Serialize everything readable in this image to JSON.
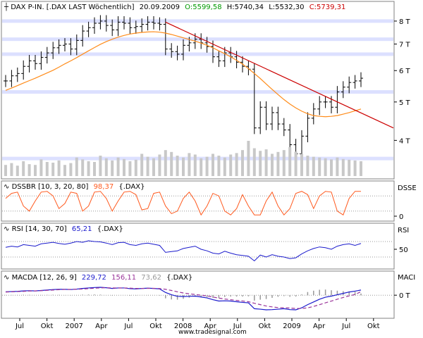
{
  "colors": {
    "background": "#ffffff",
    "price": "#000000",
    "moving_average": "#ff8c1a",
    "trendline": "#cc0000",
    "support_band": "#d6dbff",
    "volume": "#c8c8c8",
    "dssbr": "#ff5a1f",
    "rsi": "#1a1acc",
    "macd_line": "#1a1acc",
    "macd_signal": "#993399",
    "macd_hist": "#999999",
    "reference_line": "#000000",
    "gridline": "#dddddd",
    "green": "#009900",
    "red": "#cc0000"
  },
  "header": {
    "instrument": "DAX P-IN. [.DAX LAST Wöchentlich]",
    "date": "20.09.2009",
    "open": "O:5599,58",
    "high": "H:5740,34",
    "low": "L:5532,30",
    "close": "C:5739,31"
  },
  "footer": {
    "source": "www.tradesignal.com"
  },
  "chart_data": [
    {
      "type": "line",
      "panel": "price",
      "title": "DAX P-IN. [.DAX LAST Wöchentlich]",
      "y_scale": "log",
      "ylim": [
        3500,
        8400
      ],
      "y_ticks": [
        {
          "value": 8000,
          "label": "8 T"
        },
        {
          "value": 7000,
          "label": "7 T"
        },
        {
          "value": 6000,
          "label": "6 T"
        },
        {
          "value": 5000,
          "label": "5 T"
        },
        {
          "value": 4000,
          "label": "4 T"
        }
      ],
      "support_levels": [
        8000,
        7200,
        6600,
        5300,
        3600
      ],
      "x_ticks": [
        "Jul",
        "Okt",
        "2007",
        "Apr",
        "Jul",
        "Okt",
        "2008",
        "Apr",
        "Jul",
        "Okt",
        "2009",
        "Apr",
        "Jul",
        "Okt"
      ],
      "series": [
        {
          "name": "Close",
          "kind": "ohlc",
          "values": [
            5650,
            5820,
            5900,
            6150,
            6350,
            6250,
            6480,
            6650,
            6850,
            6950,
            7000,
            6800,
            7150,
            7550,
            7700,
            7900,
            8000,
            7800,
            7600,
            7950,
            7900,
            7700,
            7750,
            7850,
            7950,
            7900,
            7850,
            6800,
            6700,
            6600,
            6950,
            7050,
            7200,
            7050,
            6900,
            6500,
            6350,
            6650,
            6500,
            6300,
            6150,
            6050,
            4300,
            4850,
            4400,
            4700,
            4400,
            4250,
            3900,
            3700,
            4100,
            4550,
            4800,
            5000,
            5000,
            4850,
            5300,
            5450,
            5600,
            5650,
            5740
          ]
        },
        {
          "name": "MA",
          "kind": "line",
          "values": [
            5350,
            5420,
            5500,
            5580,
            5660,
            5740,
            5830,
            5920,
            6010,
            6120,
            6240,
            6350,
            6470,
            6600,
            6730,
            6860,
            6990,
            7100,
            7200,
            7290,
            7360,
            7420,
            7460,
            7490,
            7510,
            7520,
            7500,
            7460,
            7400,
            7330,
            7260,
            7190,
            7120,
            7040,
            6950,
            6850,
            6730,
            6620,
            6500,
            6370,
            6230,
            6070,
            5900,
            5730,
            5550,
            5380,
            5220,
            5070,
            4940,
            4830,
            4740,
            4670,
            4620,
            4600,
            4590,
            4600,
            4620,
            4660,
            4700,
            4750,
            4800
          ]
        }
      ],
      "trendline": {
        "from": 7950,
        "to": 4750
      }
    },
    {
      "type": "bar",
      "panel": "volume",
      "values": [
        30,
        35,
        28,
        40,
        32,
        30,
        45,
        38,
        36,
        42,
        30,
        35,
        50,
        45,
        40,
        38,
        55,
        48,
        42,
        50,
        46,
        40,
        44,
        60,
        52,
        48,
        58,
        70,
        65,
        55,
        50,
        62,
        58,
        48,
        52,
        60,
        55,
        50,
        58,
        62,
        70,
        95,
        75,
        68,
        72,
        60,
        65,
        70,
        78,
        66,
        60,
        55,
        52,
        50,
        48,
        45,
        50,
        46,
        44,
        42,
        40
      ]
    },
    {
      "type": "line",
      "panel": "DSSBR",
      "title": "DSSBR [10, 3, 20, 80]",
      "value_label": "98,37",
      "source_label": "{.DAX}",
      "axis_label": "DSSE",
      "y_ticks": [
        {
          "value": 0,
          "label": "0"
        }
      ],
      "ylim": [
        0,
        100
      ],
      "levels": [
        20,
        80
      ],
      "series": [
        {
          "values": [
            70,
            90,
            95,
            40,
            20,
            60,
            95,
            98,
            80,
            30,
            50,
            95,
            90,
            20,
            40,
            95,
            98,
            70,
            20,
            60,
            95,
            98,
            85,
            25,
            30,
            90,
            95,
            40,
            10,
            20,
            70,
            95,
            60,
            5,
            40,
            90,
            80,
            20,
            5,
            30,
            85,
            40,
            5,
            5,
            60,
            95,
            40,
            5,
            30,
            90,
            98,
            85,
            30,
            80,
            98,
            95,
            20,
            5,
            70,
            98,
            98
          ]
        }
      ]
    },
    {
      "type": "line",
      "panel": "RSI",
      "title": "RSI [14, 30, 70]",
      "value_label": "65,21",
      "source_label": "{.DAX}",
      "axis_label": "RSI",
      "y_ticks": [
        {
          "value": 50,
          "label": "50"
        }
      ],
      "ylim": [
        10,
        90
      ],
      "levels": [
        30,
        70
      ],
      "series": [
        {
          "values": [
            55,
            58,
            56,
            62,
            60,
            58,
            64,
            66,
            68,
            65,
            63,
            66,
            70,
            68,
            72,
            70,
            69,
            66,
            62,
            67,
            68,
            62,
            60,
            64,
            66,
            63,
            60,
            42,
            44,
            46,
            52,
            55,
            58,
            50,
            46,
            40,
            38,
            45,
            40,
            36,
            34,
            32,
            20,
            35,
            30,
            36,
            32,
            30,
            26,
            28,
            38,
            46,
            52,
            56,
            54,
            50,
            58,
            62,
            64,
            60,
            65
          ]
        }
      ]
    },
    {
      "type": "line",
      "panel": "MACD",
      "title": "MACDA [12, 26, 9]",
      "value_labels": [
        "229,72",
        "156,11",
        "73,62"
      ],
      "source_label": "{.DAX}",
      "axis_label": "MACI",
      "y_ticks": [
        {
          "value": 0,
          "label": "0 T"
        }
      ],
      "ylim": [
        -900,
        600
      ],
      "series": [
        {
          "name": "MACD",
          "values": [
            150,
            160,
            170,
            190,
            200,
            190,
            210,
            230,
            250,
            260,
            260,
            250,
            270,
            300,
            320,
            340,
            350,
            330,
            300,
            320,
            320,
            290,
            280,
            300,
            310,
            300,
            280,
            120,
            20,
            -50,
            -60,
            -50,
            -40,
            -80,
            -120,
            -200,
            -260,
            -250,
            -260,
            -290,
            -320,
            -340,
            -600,
            -620,
            -650,
            -640,
            -620,
            -600,
            -640,
            -650,
            -560,
            -420,
            -300,
            -180,
            -90,
            -40,
            20,
            80,
            140,
            180,
            229
          ]
        },
        {
          "name": "Signal",
          "values": [
            140,
            150,
            160,
            170,
            185,
            190,
            200,
            215,
            230,
            245,
            255,
            258,
            262,
            275,
            292,
            310,
            325,
            330,
            320,
            318,
            320,
            310,
            300,
            300,
            302,
            302,
            296,
            260,
            210,
            150,
            100,
            60,
            30,
            0,
            -30,
            -80,
            -130,
            -170,
            -200,
            -230,
            -260,
            -290,
            -360,
            -420,
            -480,
            -520,
            -550,
            -560,
            -570,
            -590,
            -590,
            -560,
            -500,
            -420,
            -340,
            -260,
            -180,
            -100,
            -30,
            30,
            156
          ]
        },
        {
          "name": "Histogram",
          "values": [
            10,
            10,
            10,
            20,
            15,
            0,
            10,
            15,
            20,
            15,
            5,
            -8,
            8,
            25,
            28,
            30,
            25,
            0,
            -20,
            2,
            0,
            -20,
            -20,
            0,
            8,
            -2,
            -16,
            -140,
            -190,
            -200,
            -160,
            -110,
            -70,
            -80,
            -90,
            -120,
            -130,
            -80,
            -60,
            -60,
            -60,
            -50,
            -240,
            -200,
            -170,
            -120,
            -70,
            -40,
            -70,
            -60,
            30,
            140,
            200,
            240,
            250,
            220,
            200,
            180,
            170,
            150,
            73
          ]
        }
      ]
    }
  ]
}
